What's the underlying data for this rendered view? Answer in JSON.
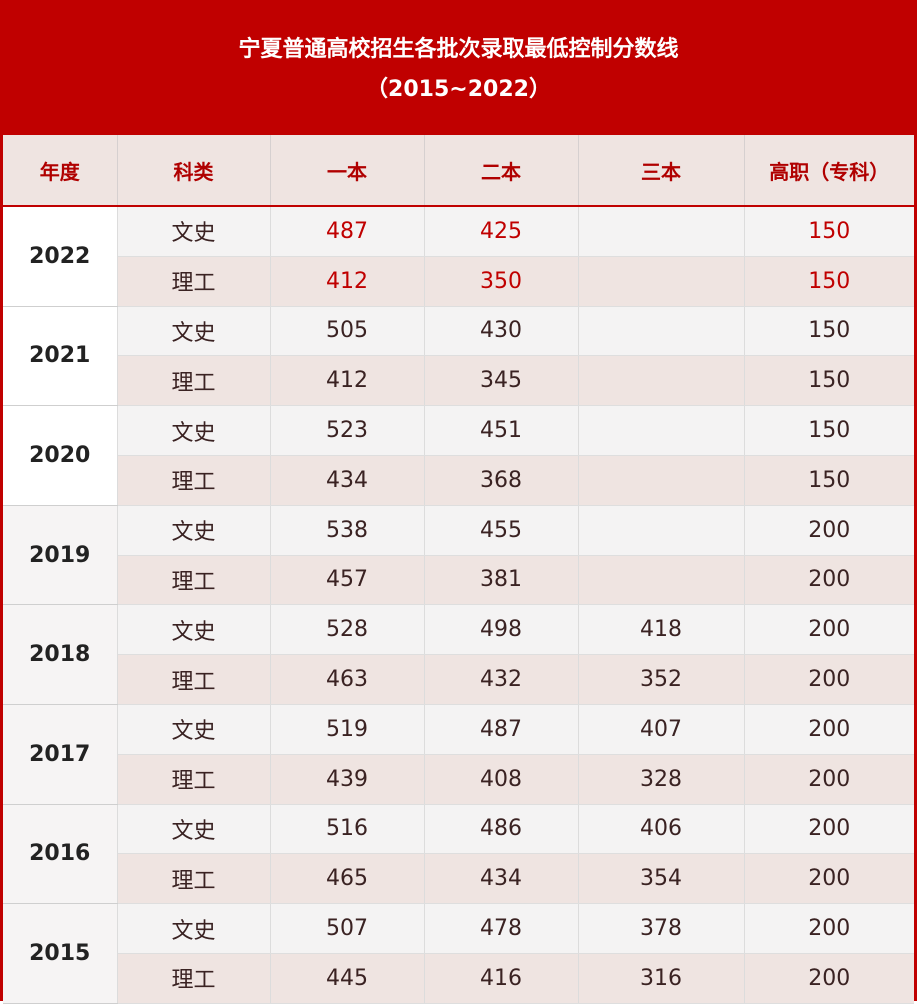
{
  "title": {
    "line1": "宁夏普通高校招生各批次录取最低控制分数线",
    "line2": "（2015~2022）"
  },
  "colors": {
    "accent": "#c00000",
    "header_bg": "#efe4e1",
    "row_alt_bg": "#f4f3f3"
  },
  "headers": [
    "年度",
    "科类",
    "一本",
    "二本",
    "三本",
    "高职（专科）"
  ],
  "rows": [
    {
      "year": "2022",
      "entries": [
        {
          "category": "文史",
          "b1": "487",
          "b2": "425",
          "b3": "",
          "gz": "150"
        },
        {
          "category": "理工",
          "b1": "412",
          "b2": "350",
          "b3": "",
          "gz": "150"
        }
      ]
    },
    {
      "year": "2021",
      "entries": [
        {
          "category": "文史",
          "b1": "505",
          "b2": "430",
          "b3": "",
          "gz": "150"
        },
        {
          "category": "理工",
          "b1": "412",
          "b2": "345",
          "b3": "",
          "gz": "150"
        }
      ]
    },
    {
      "year": "2020",
      "entries": [
        {
          "category": "文史",
          "b1": "523",
          "b2": "451",
          "b3": "",
          "gz": "150"
        },
        {
          "category": "理工",
          "b1": "434",
          "b2": "368",
          "b3": "",
          "gz": "150"
        }
      ]
    },
    {
      "year": "2019",
      "entries": [
        {
          "category": "文史",
          "b1": "538",
          "b2": "455",
          "b3": "",
          "gz": "200"
        },
        {
          "category": "理工",
          "b1": "457",
          "b2": "381",
          "b3": "",
          "gz": "200"
        }
      ]
    },
    {
      "year": "2018",
      "entries": [
        {
          "category": "文史",
          "b1": "528",
          "b2": "498",
          "b3": "418",
          "gz": "200"
        },
        {
          "category": "理工",
          "b1": "463",
          "b2": "432",
          "b3": "352",
          "gz": "200"
        }
      ]
    },
    {
      "year": "2017",
      "entries": [
        {
          "category": "文史",
          "b1": "519",
          "b2": "487",
          "b3": "407",
          "gz": "200"
        },
        {
          "category": "理工",
          "b1": "439",
          "b2": "408",
          "b3": "328",
          "gz": "200"
        }
      ]
    },
    {
      "year": "2016",
      "entries": [
        {
          "category": "文史",
          "b1": "516",
          "b2": "486",
          "b3": "406",
          "gz": "200"
        },
        {
          "category": "理工",
          "b1": "465",
          "b2": "434",
          "b3": "354",
          "gz": "200"
        }
      ]
    },
    {
      "year": "2015",
      "entries": [
        {
          "category": "文史",
          "b1": "507",
          "b2": "478",
          "b3": "378",
          "gz": "200"
        },
        {
          "category": "理工",
          "b1": "445",
          "b2": "416",
          "b3": "316",
          "gz": "200"
        }
      ]
    }
  ]
}
